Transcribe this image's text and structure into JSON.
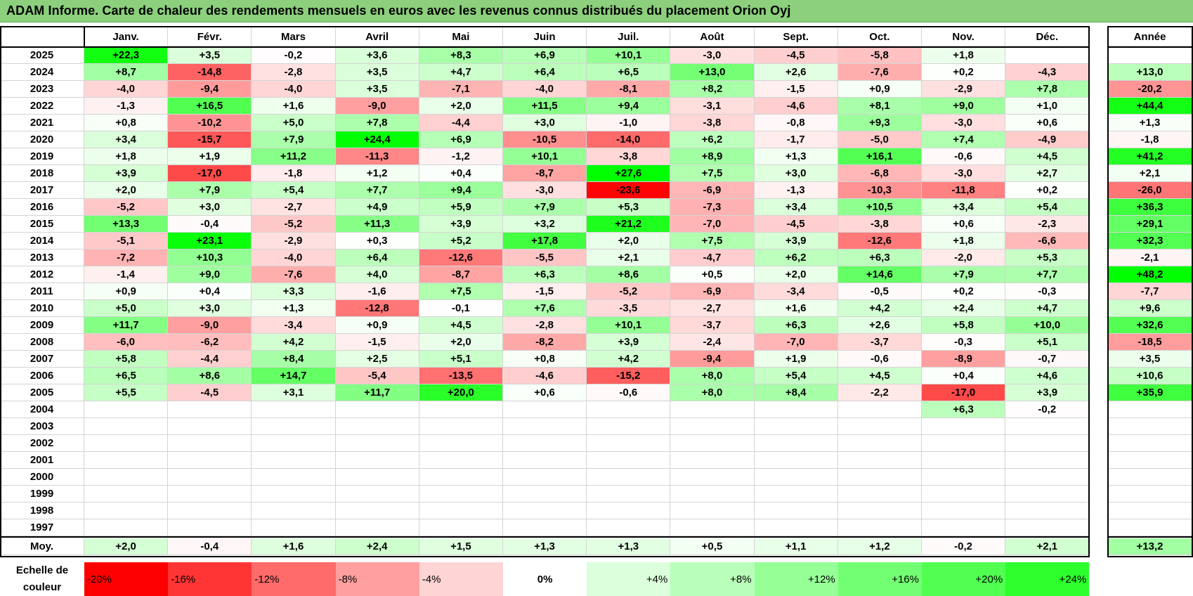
{
  "title": "ADAM Informe. Carte de chaleur des rendements mensuels en euros avec les revenus connus distribués du placement Orion Oyj",
  "months": [
    "Janv.",
    "Févr.",
    "Mars",
    "Avril",
    "Mai",
    "Juin",
    "Juil.",
    "Août",
    "Sept.",
    "Oct.",
    "Nov.",
    "Déc."
  ],
  "annual_header": "Année",
  "avg_label": "Moy.",
  "legend_label": "Echelle de couleur",
  "legend": [
    "-20%",
    "-16%",
    "-12%",
    "-8%",
    "-4%",
    "0%",
    "+4%",
    "+8%",
    "+12%",
    "+16%",
    "+20%",
    "+24%"
  ],
  "legend_colors": [
    "#ff0000",
    "#ff3535",
    "#ff6a6a",
    "#ff9f9f",
    "#ffd4d4",
    "#ffffff",
    "#dcffdc",
    "#b9ffb9",
    "#96ff96",
    "#73ff73",
    "#50ff50",
    "#2dff2d"
  ],
  "chart_data": {
    "type": "heatmap",
    "title": "ADAM Informe. Carte de chaleur des rendements mensuels en euros avec les revenus connus distribués du placement Orion Oyj",
    "x_categories": [
      "Janv.",
      "Févr.",
      "Mars",
      "Avril",
      "Mai",
      "Juin",
      "Juil.",
      "Août",
      "Sept.",
      "Oct.",
      "Nov.",
      "Déc."
    ],
    "y_categories": [
      "2025",
      "2024",
      "2023",
      "2022",
      "2021",
      "2020",
      "2019",
      "2018",
      "2017",
      "2016",
      "2015",
      "2014",
      "2013",
      "2012",
      "2011",
      "2010",
      "2009",
      "2008",
      "2007",
      "2006",
      "2005",
      "2004",
      "2003",
      "2002",
      "2001",
      "2000",
      "1999",
      "1998",
      "1997"
    ],
    "values": [
      [
        "+22,3",
        "+3,5",
        "-0,2",
        "+3,6",
        "+8,3",
        "+6,9",
        "+10,1",
        "-3,0",
        "-4,5",
        "-5,8",
        "+1,8",
        ""
      ],
      [
        "+8,7",
        "-14,8",
        "-2,8",
        "+3,5",
        "+4,7",
        "+6,4",
        "+6,5",
        "+13,0",
        "+2,6",
        "-7,6",
        "+0,2",
        "-4,3"
      ],
      [
        "-4,0",
        "-9,4",
        "-4,0",
        "+3,5",
        "-7,1",
        "-4,0",
        "-8,1",
        "+8,2",
        "-1,5",
        "+0,9",
        "-2,9",
        "+7,8"
      ],
      [
        "-1,3",
        "+16,5",
        "+1,6",
        "-9,0",
        "+2,0",
        "+11,5",
        "+9,4",
        "-3,1",
        "-4,6",
        "+8,1",
        "+9,0",
        "+1,0"
      ],
      [
        "+0,8",
        "-10,2",
        "+5,0",
        "+7,8",
        "-4,4",
        "+3,0",
        "-1,0",
        "-3,8",
        "-0,8",
        "+9,3",
        "-3,0",
        "+0,6"
      ],
      [
        "+3,4",
        "-15,7",
        "+7,9",
        "+24,4",
        "+6,9",
        "-10,5",
        "-14,0",
        "+6,2",
        "-1,7",
        "-5,0",
        "+7,4",
        "-4,9"
      ],
      [
        "+1,8",
        "+1,9",
        "+11,2",
        "-11,3",
        "-1,2",
        "+10,1",
        "-3,8",
        "+8,9",
        "+1,3",
        "+16,1",
        "-0,6",
        "+4,5"
      ],
      [
        "+3,9",
        "-17,0",
        "-1,8",
        "+1,2",
        "+0,4",
        "-8,7",
        "+27,6",
        "+7,5",
        "+3,0",
        "-6,8",
        "-3,0",
        "+2,7"
      ],
      [
        "+2,0",
        "+7,9",
        "+5,4",
        "+7,7",
        "+9,4",
        "-3,0",
        "-23,6",
        "-6,9",
        "-1,3",
        "-10,3",
        "-11,8",
        "+0,2"
      ],
      [
        "-5,2",
        "+3,0",
        "-2,7",
        "+4,9",
        "+5,9",
        "+7,9",
        "+5,3",
        "-7,3",
        "+3,4",
        "+10,5",
        "+3,4",
        "+5,4"
      ],
      [
        "+13,3",
        "-0,4",
        "-5,2",
        "+11,3",
        "+3,9",
        "+3,2",
        "+21,2",
        "-7,0",
        "-4,5",
        "-3,8",
        "+0,6",
        "-2,3"
      ],
      [
        "-5,1",
        "+23,1",
        "-2,9",
        "+0,3",
        "+5,2",
        "+17,8",
        "+2,0",
        "+7,5",
        "+3,9",
        "-12,6",
        "+1,8",
        "-6,6"
      ],
      [
        "-7,2",
        "+10,3",
        "-4,0",
        "+6,4",
        "-12,6",
        "-5,5",
        "+2,1",
        "-4,7",
        "+6,2",
        "+6,3",
        "-2,0",
        "+5,3"
      ],
      [
        "-1,4",
        "+9,0",
        "-7,6",
        "+4,0",
        "-8,7",
        "+6,3",
        "+8,6",
        "+0,5",
        "+2,0",
        "+14,6",
        "+7,9",
        "+7,7"
      ],
      [
        "+0,9",
        "+0,4",
        "+3,3",
        "-1,6",
        "+7,5",
        "-1,5",
        "-5,2",
        "-6,9",
        "-3,4",
        "-0,5",
        "+0,2",
        "-0,3"
      ],
      [
        "+5,0",
        "+3,0",
        "+1,3",
        "-12,8",
        "-0,1",
        "+7,6",
        "-3,5",
        "-2,7",
        "+1,6",
        "+4,2",
        "+2,4",
        "+4,7"
      ],
      [
        "+11,7",
        "-9,0",
        "-3,4",
        "+0,9",
        "+4,5",
        "-2,8",
        "+10,1",
        "-3,7",
        "+6,3",
        "+2,6",
        "+5,8",
        "+10,0"
      ],
      [
        "-6,0",
        "-6,2",
        "+4,2",
        "-1,5",
        "+2,0",
        "-8,2",
        "+3,9",
        "-2,4",
        "-7,0",
        "-3,7",
        "-0,3",
        "+5,1"
      ],
      [
        "+5,8",
        "-4,4",
        "+8,4",
        "+2,5",
        "+5,1",
        "+0,8",
        "+4,2",
        "-9,4",
        "+1,9",
        "-0,6",
        "-8,9",
        "-0,7"
      ],
      [
        "+6,5",
        "+8,6",
        "+14,7",
        "-5,4",
        "-13,5",
        "-4,6",
        "-15,2",
        "+8,0",
        "+5,4",
        "+4,5",
        "+0,4",
        "+4,6"
      ],
      [
        "+5,5",
        "-4,5",
        "+3,1",
        "+11,7",
        "+20,0",
        "+0,6",
        "-0,6",
        "+8,0",
        "+8,4",
        "-2,2",
        "-17,0",
        "+3,9"
      ],
      [
        "",
        "",
        "",
        "",
        "",
        "",
        "",
        "",
        "",
        "",
        "+6,3",
        "-0,2"
      ],
      [
        "",
        "",
        "",
        "",
        "",
        "",
        "",
        "",
        "",
        "",
        "",
        ""
      ],
      [
        "",
        "",
        "",
        "",
        "",
        "",
        "",
        "",
        "",
        "",
        "",
        ""
      ],
      [
        "",
        "",
        "",
        "",
        "",
        "",
        "",
        "",
        "",
        "",
        "",
        ""
      ],
      [
        "",
        "",
        "",
        "",
        "",
        "",
        "",
        "",
        "",
        "",
        "",
        ""
      ],
      [
        "",
        "",
        "",
        "",
        "",
        "",
        "",
        "",
        "",
        "",
        "",
        ""
      ],
      [
        "",
        "",
        "",
        "",
        "",
        "",
        "",
        "",
        "",
        "",
        "",
        ""
      ],
      [
        "",
        "",
        "",
        "",
        "",
        "",
        "",
        "",
        "",
        "",
        "",
        ""
      ]
    ],
    "annual": [
      "",
      "+13,0",
      "-20,2",
      "+44,4",
      "+1,3",
      "-1,8",
      "+41,2",
      "+2,1",
      "-26,0",
      "+36,3",
      "+29,1",
      "+32,3",
      "-2,1",
      "+48,2",
      "-7,7",
      "+9,6",
      "+32,6",
      "-18,5",
      "+3,5",
      "+10,6",
      "+35,9",
      "",
      "",
      "",
      "",
      "",
      "",
      "",
      ""
    ],
    "average": [
      "+2,0",
      "-0,4",
      "+1,6",
      "+2,4",
      "+1,5",
      "+1,3",
      "+1,3",
      "+0,5",
      "+1,1",
      "+1,2",
      "-0,2",
      "+2,1"
    ],
    "average_annual": "+13,2",
    "color_scale": {
      "min": -20,
      "max": 24,
      "step": 4,
      "negative": "#ff0000",
      "zero": "#ffffff",
      "positive": "#00ff00"
    }
  }
}
